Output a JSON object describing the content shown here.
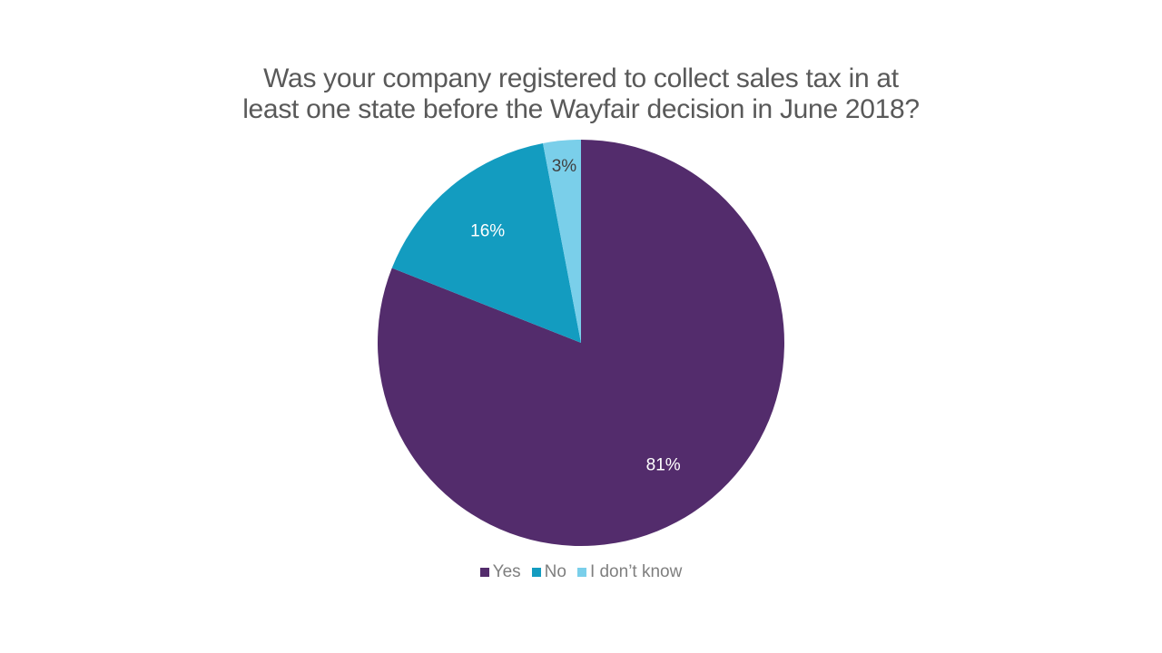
{
  "chart_data": {
    "type": "pie",
    "title": "Was your company registered to collect sales tax in at least one state before the Wayfair decision in June 2018?",
    "title_lines": [
      "Was your company registered to collect sales tax in at",
      "least one state before the Wayfair decision in June 2018?"
    ],
    "categories": [
      "Yes",
      "No",
      "I don’t know"
    ],
    "values": [
      81,
      16,
      3
    ],
    "labels": [
      "81%",
      "16%",
      "3%"
    ],
    "colors": [
      "#532C6C",
      "#139CC0",
      "#7ACFEA"
    ],
    "label_colors": [
      "#ffffff",
      "#ffffff",
      "#404040"
    ],
    "start_angle": "12 o'clock",
    "direction": "clockwise",
    "legend_position": "bottom"
  }
}
